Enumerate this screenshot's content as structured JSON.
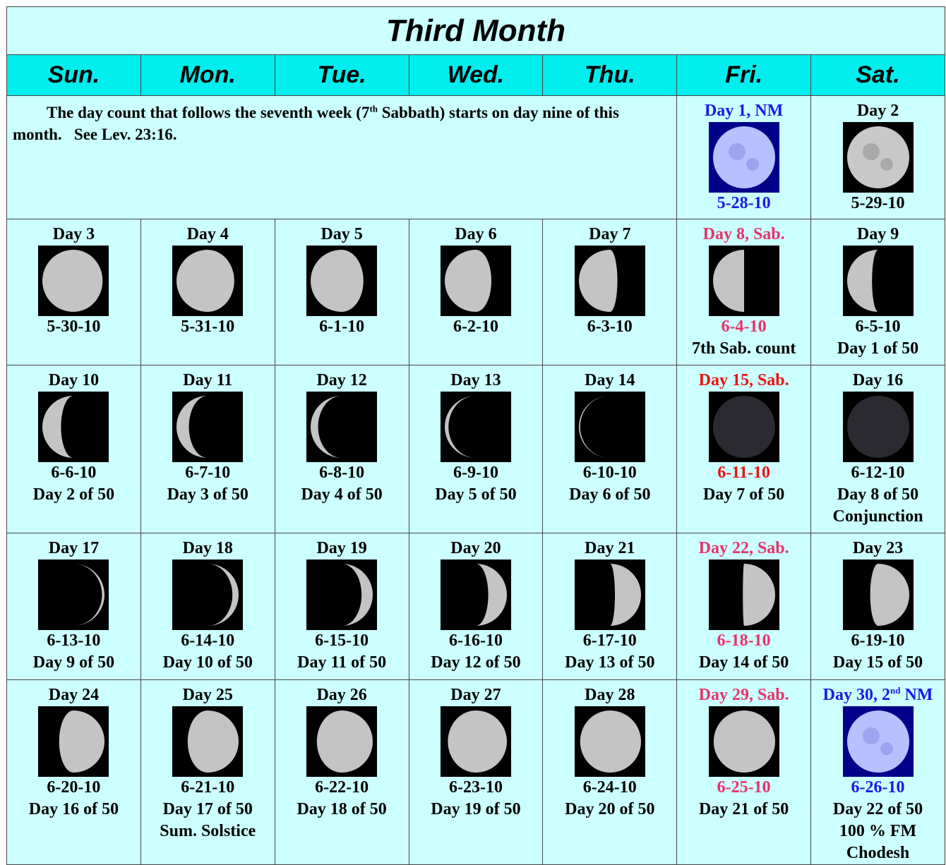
{
  "title": "Third Month",
  "weekdays": [
    "Sun.",
    "Mon.",
    "Tue.",
    "Wed.",
    "Thu.",
    "Fri.",
    "Sat."
  ],
  "note": [
    "The day count that follows the seventh week (7",
    {
      "sup": "th"
    },
    " Sabbath) starts on day nine of this month.   See Lev. 23:16."
  ],
  "days": [
    {
      "label": "Day 1, NM",
      "date": "5-28-10",
      "color": "#1a1ae6",
      "lines": []
    },
    {
      "label": "Day 2",
      "date": "5-29-10",
      "lines": []
    },
    {
      "label": "Day 3",
      "date": "5-30-10",
      "lines": []
    },
    {
      "label": "Day 4",
      "date": "5-31-10",
      "lines": []
    },
    {
      "label": "Day 5",
      "date": "6-1-10",
      "lines": []
    },
    {
      "label": "Day 6",
      "date": "6-2-10",
      "lines": []
    },
    {
      "label": "Day 7",
      "date": "6-3-10",
      "lines": []
    },
    {
      "label": "Day 8, Sab.",
      "date": "6-4-10",
      "color": "#e8336b",
      "lines": [
        "7th Sab. count"
      ]
    },
    {
      "label": "Day 9",
      "date": "6-5-10",
      "lines": [
        "Day 1 of 50"
      ]
    },
    {
      "label": "Day 10",
      "date": "6-6-10",
      "lines": [
        "Day 2 of 50"
      ]
    },
    {
      "label": "Day 11",
      "date": "6-7-10",
      "lines": [
        "Day 3 of 50"
      ]
    },
    {
      "label": "Day 12",
      "date": "6-8-10",
      "lines": [
        "Day 4 of 50"
      ]
    },
    {
      "label": "Day 13",
      "date": "6-9-10",
      "lines": [
        "Day 5 of 50"
      ]
    },
    {
      "label": "Day 14",
      "date": "6-10-10",
      "lines": [
        "Day 6 of 50"
      ]
    },
    {
      "label": "Day 15, Sab.",
      "date": "6-11-10",
      "color": "#ee1111",
      "lines": [
        "Day 7 of 50"
      ]
    },
    {
      "label": "Day 16",
      "date": "6-12-10",
      "lines": [
        "Day 8 of 50",
        "Conjunction"
      ]
    },
    {
      "label": "Day 17",
      "date": "6-13-10",
      "lines": [
        "Day 9 of 50"
      ]
    },
    {
      "label": "Day 18",
      "date": "6-14-10",
      "lines": [
        "Day 10 of 50"
      ]
    },
    {
      "label": "Day 19",
      "date": "6-15-10",
      "lines": [
        "Day 11 of 50"
      ]
    },
    {
      "label": "Day 20",
      "date": "6-16-10",
      "lines": [
        "Day 12 of 50"
      ]
    },
    {
      "label": "Day 21",
      "date": "6-17-10",
      "lines": [
        "Day 13 of 50"
      ]
    },
    {
      "label": "Day 22, Sab.",
      "date": "6-18-10",
      "color": "#e8336b",
      "lines": [
        "Day 14 of 50"
      ]
    },
    {
      "label": "Day 23",
      "date": "6-19-10",
      "lines": [
        "Day 15 of 50"
      ]
    },
    {
      "label": "Day 24",
      "date": "6-20-10",
      "lines": [
        "Day 16 of 50"
      ]
    },
    {
      "label": "Day 25",
      "date": "6-21-10",
      "lines": [
        "Day 17 of 50",
        "Sum. Solstice"
      ]
    },
    {
      "label": "Day 26",
      "date": "6-22-10",
      "lines": [
        "Day 18 of 50"
      ]
    },
    {
      "label": "Day 27",
      "date": "6-23-10",
      "lines": [
        "Day 19 of 50"
      ]
    },
    {
      "label": "Day 28",
      "date": "6-24-10",
      "lines": [
        "Day 20 of 50"
      ]
    },
    {
      "label": "Day 29, Sab.",
      "date": "6-25-10",
      "color": "#e8336b",
      "lines": [
        "Day 21 of 50"
      ]
    },
    {
      "label": [
        "Day 30, 2",
        {
          "sup": "nd"
        },
        " NM"
      ],
      "date": "6-26-10",
      "color": "#1a1ae6",
      "lines": [
        "Day 22 of 50",
        "100 % FM",
        "Chodesh"
      ]
    }
  ]
}
